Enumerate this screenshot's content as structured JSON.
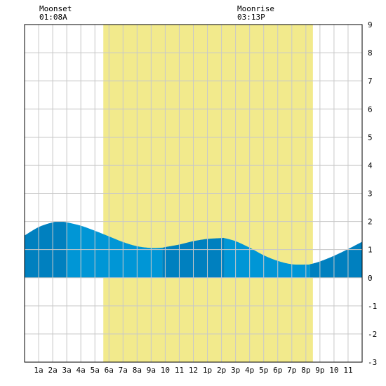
{
  "annotations": {
    "moonset": {
      "label": "Moonset",
      "time": "01:08A"
    },
    "moonrise": {
      "label": "Moonrise",
      "time": "03:13P"
    }
  },
  "colors": {
    "background": "#ffffff",
    "grid": "#c8c8c8",
    "daylight": "#f2ea8c",
    "tide_light": "#0096d6",
    "tide_dark": "#0080bf",
    "border": "#000000"
  },
  "chart_data": {
    "type": "area",
    "xlabel": "",
    "ylabel": "",
    "x_range_hours": [
      0,
      24
    ],
    "ylim": [
      -3,
      9
    ],
    "y_ticks": [
      9,
      8,
      7,
      6,
      5,
      4,
      3,
      2,
      1,
      0,
      -1,
      -2,
      -3
    ],
    "x_tick_labels": [
      "1a",
      "2a",
      "3a",
      "4a",
      "5a",
      "6a",
      "7a",
      "8a",
      "9a",
      "10",
      "11",
      "12",
      "1p",
      "2p",
      "3p",
      "4p",
      "5p",
      "6p",
      "7p",
      "8p",
      "9p",
      "10",
      "11"
    ],
    "grid": true,
    "daylight_hours": [
      5.6,
      20.5
    ],
    "tide_series": {
      "x_hours": [
        0,
        1,
        2,
        2.5,
        3,
        4,
        5,
        6,
        7,
        8,
        9,
        9.8,
        10,
        11,
        12,
        13,
        14,
        14.2,
        15,
        16,
        17,
        18,
        19,
        20,
        20.3,
        21,
        22,
        23,
        24
      ],
      "y_feet": [
        1.5,
        1.8,
        1.97,
        2.0,
        1.97,
        1.85,
        1.67,
        1.47,
        1.27,
        1.12,
        1.06,
        1.07,
        1.09,
        1.18,
        1.3,
        1.38,
        1.41,
        1.41,
        1.3,
        1.07,
        0.8,
        0.6,
        0.48,
        0.47,
        0.48,
        0.58,
        0.78,
        1.02,
        1.28
      ]
    },
    "tide_bands": [
      {
        "from": 0,
        "to": 3,
        "shade": "dark"
      },
      {
        "from": 3,
        "to": 9.8,
        "shade": "light"
      },
      {
        "from": 9.8,
        "to": 14.2,
        "shade": "dark"
      },
      {
        "from": 14.2,
        "to": 20.3,
        "shade": "light"
      },
      {
        "from": 20.3,
        "to": 24,
        "shade": "dark"
      }
    ]
  }
}
